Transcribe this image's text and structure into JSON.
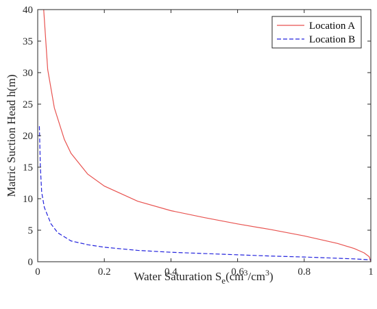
{
  "chart_data": {
    "type": "line",
    "title": "",
    "xlabel": {
      "main": "Water Saturation S",
      "sub": "e",
      "open": "(cm",
      "sup1": "3",
      "mid": "/cm",
      "sup2": "3",
      "close": ")"
    },
    "ylabel": "Matric Suction Head h(m)",
    "xlim": [
      0,
      1
    ],
    "ylim": [
      0,
      40
    ],
    "xticks": [
      0,
      0.2,
      0.4,
      0.6,
      0.8,
      1
    ],
    "xtick_labels": [
      "0",
      "0.2",
      "0.4",
      "0.6",
      "0.8",
      "1"
    ],
    "yticks": [
      0,
      5,
      10,
      15,
      20,
      25,
      30,
      35,
      40
    ],
    "ytick_labels": [
      "0",
      "5",
      "10",
      "15",
      "20",
      "25",
      "30",
      "35",
      "40"
    ],
    "grid": false,
    "legend_position": "top-right",
    "series": [
      {
        "name": "Location A",
        "color": "#e8524f",
        "style": "solid",
        "points": [
          [
            0.018,
            40
          ],
          [
            0.03,
            30.5
          ],
          [
            0.05,
            24.4
          ],
          [
            0.08,
            19.4
          ],
          [
            0.1,
            17.2
          ],
          [
            0.15,
            13.9
          ],
          [
            0.2,
            12.0
          ],
          [
            0.3,
            9.6
          ],
          [
            0.4,
            8.1
          ],
          [
            0.5,
            7.0
          ],
          [
            0.6,
            6.0
          ],
          [
            0.7,
            5.1
          ],
          [
            0.8,
            4.1
          ],
          [
            0.9,
            2.9
          ],
          [
            0.95,
            2.1
          ],
          [
            0.98,
            1.4
          ],
          [
            0.995,
            0.8
          ],
          [
            1.0,
            0
          ]
        ]
      },
      {
        "name": "Location B",
        "color": "#2222dd",
        "style": "dashed",
        "points": [
          [
            0.005,
            21.5
          ],
          [
            0.008,
            15.0
          ],
          [
            0.012,
            11.0
          ],
          [
            0.02,
            8.6
          ],
          [
            0.04,
            6.0
          ],
          [
            0.06,
            4.6
          ],
          [
            0.1,
            3.3
          ],
          [
            0.15,
            2.7
          ],
          [
            0.2,
            2.3
          ],
          [
            0.3,
            1.8
          ],
          [
            0.4,
            1.5
          ],
          [
            0.5,
            1.3
          ],
          [
            0.6,
            1.1
          ],
          [
            0.7,
            0.9
          ],
          [
            0.8,
            0.75
          ],
          [
            0.9,
            0.55
          ],
          [
            0.95,
            0.45
          ],
          [
            1.0,
            0.3
          ]
        ]
      }
    ]
  }
}
